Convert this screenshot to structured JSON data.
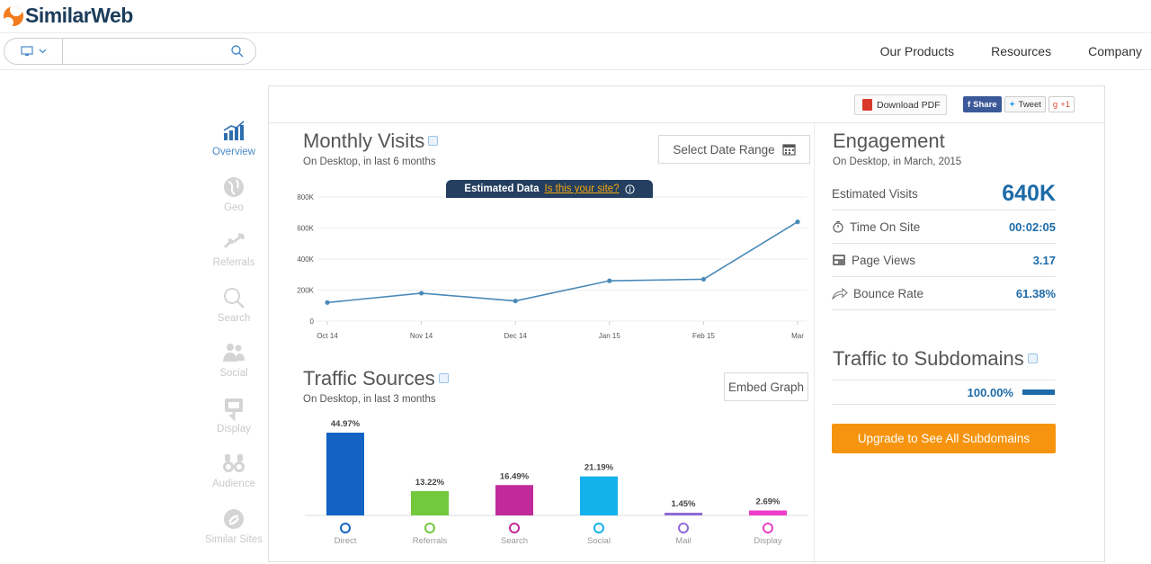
{
  "brand": {
    "name": "SimilarWeb"
  },
  "search": {
    "placeholder": "",
    "value": ""
  },
  "nav": {
    "items": [
      "Our Products",
      "Resources",
      "Company"
    ]
  },
  "sidebar": {
    "items": [
      {
        "label": "Overview",
        "icon": "bar-chart-icon",
        "active": true
      },
      {
        "label": "Geo",
        "icon": "globe-icon",
        "active": false
      },
      {
        "label": "Referrals",
        "icon": "arrows-icon",
        "active": false
      },
      {
        "label": "Search",
        "icon": "search-icon",
        "active": false
      },
      {
        "label": "Social",
        "icon": "people-icon",
        "active": false
      },
      {
        "label": "Display",
        "icon": "display-ad-icon",
        "active": false
      },
      {
        "label": "Audience",
        "icon": "binoculars-icon",
        "active": false
      },
      {
        "label": "Similar Sites",
        "icon": "similar-sites-icon",
        "active": false
      }
    ]
  },
  "toolbar": {
    "download_pdf": "Download PDF",
    "share": "Share",
    "tweet": "Tweet",
    "gplus": "+1"
  },
  "monthly": {
    "title": "Monthly Visits",
    "subtitle": "On Desktop, in last 6 months",
    "date_button": "Select Date Range",
    "estimated": "Estimated Data",
    "is_your_site": "Is this your site?"
  },
  "traffic": {
    "title": "Traffic Sources",
    "subtitle": "On Desktop, in last 3 months",
    "embed": "Embed Graph"
  },
  "engagement": {
    "title": "Engagement",
    "subtitle": "On Desktop, in March, 2015",
    "rows": [
      {
        "label": "Estimated Visits",
        "value": "640K",
        "icon": ""
      },
      {
        "label": "Time On Site",
        "value": "00:02:05",
        "icon": "stopwatch-icon"
      },
      {
        "label": "Page Views",
        "value": "3.17",
        "icon": "page-icon"
      },
      {
        "label": "Bounce Rate",
        "value": "61.38%",
        "icon": "bounce-arrow-icon"
      }
    ]
  },
  "subdomains": {
    "title": "Traffic to Subdomains",
    "value": "100.00%",
    "upgrade": "Upgrade to See All Subdomains"
  },
  "chart_data": [
    {
      "type": "line",
      "title": "",
      "x": [
        "Oct 14",
        "Nov 14",
        "Dec 14",
        "Jan 15",
        "Feb 15",
        "Mar"
      ],
      "series": [
        {
          "values": [
            120000,
            180000,
            130000,
            260000,
            270000,
            640000
          ]
        }
      ],
      "y_ticks": [
        "0",
        "200K",
        "400K",
        "600K",
        "800K"
      ],
      "ylim": [
        0,
        800000
      ],
      "color": "#4a89b8",
      "grid": true
    },
    {
      "type": "bar",
      "title": "",
      "categories": [
        "Direct",
        "Referrals",
        "Search",
        "Social",
        "Mail",
        "Display"
      ],
      "values": [
        44.97,
        13.22,
        16.49,
        21.19,
        1.45,
        2.69
      ],
      "labels": [
        "44.97%",
        "13.22%",
        "16.49%",
        "21.19%",
        "1.45%",
        "2.69%"
      ],
      "colors": [
        "#1463c4",
        "#72c93c",
        "#c02a9a",
        "#14b2ec",
        "#8f6bd6",
        "#ec3ec8"
      ],
      "icons": [
        "target-icon",
        "referrals-icon",
        "search-icon",
        "social-icon",
        "mail-icon",
        "display-icon"
      ]
    }
  ]
}
